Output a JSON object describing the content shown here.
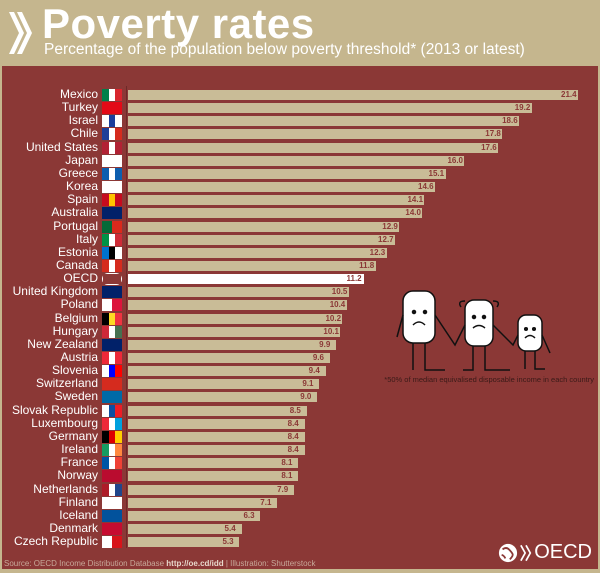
{
  "header": {
    "title": "Poverty rates",
    "subtitle": "Percentage of the population below poverty threshold* (2013 or latest)"
  },
  "footnote": "50% of median equivalised disposable income in each country",
  "footnote_mark": "*",
  "source": {
    "text": "Source: OECD Income Distribution Database ",
    "link": "http://oe.cd/idd",
    "suffix": " | Illustration: Shutterstock"
  },
  "logo": {
    "text": "OECD"
  },
  "colors": {
    "background": "#c5b68e",
    "panel": "#8b3836",
    "bar": "#c9bc97",
    "highlight": "#ffffff"
  },
  "chart_data": {
    "type": "bar",
    "orientation": "horizontal",
    "title": "Poverty rates",
    "xlabel": "",
    "ylabel": "",
    "xlim": [
      0,
      21.4
    ],
    "categories": [
      "Mexico",
      "Turkey",
      "Israel",
      "Chile",
      "United States",
      "Japan",
      "Greece",
      "Korea",
      "Spain",
      "Australia",
      "Portugal",
      "Italy",
      "Estonia",
      "Canada",
      "OECD",
      "United Kingdom",
      "Poland",
      "Belgium",
      "Hungary",
      "New Zealand",
      "Austria",
      "Slovenia",
      "Switzerland",
      "Sweden",
      "Slovak Republic",
      "Luxembourg",
      "Germany",
      "Ireland",
      "France",
      "Norway",
      "Netherlands",
      "Finland",
      "Iceland",
      "Denmark",
      "Czech Republic"
    ],
    "values": [
      21.4,
      19.2,
      18.6,
      17.8,
      17.6,
      16.0,
      15.1,
      14.6,
      14.1,
      14.0,
      12.9,
      12.7,
      12.3,
      11.8,
      11.2,
      10.5,
      10.4,
      10.2,
      10.1,
      9.9,
      9.6,
      9.4,
      9.1,
      9.0,
      8.5,
      8.4,
      8.4,
      8.4,
      8.1,
      8.1,
      7.9,
      7.1,
      6.3,
      5.4,
      5.3
    ],
    "value_labels": [
      "21.4",
      "19.2",
      "18.6",
      "17.8",
      "17.6",
      "16.0",
      "15.1",
      "14.6",
      "14.1",
      "14.0",
      "12.9",
      "12.7",
      "12.3",
      "11.8",
      "11.2",
      "10.5",
      "10.4",
      "10.2",
      "10.1",
      "9.9",
      "9.6",
      "9.4",
      "9.1",
      "9.0",
      "8.5",
      "8.4",
      "8.4",
      "8.4",
      "8.1",
      "8.1",
      "7.9",
      "7.1",
      "6.3",
      "5.4",
      "5.3"
    ],
    "highlight": "OECD"
  },
  "flags": [
    [
      "#00804a",
      "#fff",
      "#d8262e"
    ],
    [
      "#e30a17"
    ],
    [
      "#fff",
      "#1a3e9c",
      "#fff"
    ],
    [
      "#1e3f99",
      "#fff",
      "#d52b1e"
    ],
    [
      "#b22234",
      "#fff",
      "#b22234"
    ],
    [
      "#fff"
    ],
    [
      "#0d5eaf",
      "#fff",
      "#0d5eaf"
    ],
    [
      "#fff"
    ],
    [
      "#c60b1e",
      "#ffc400",
      "#c60b1e"
    ],
    [
      "#012169"
    ],
    [
      "#046a38",
      "#da291c"
    ],
    [
      "#009246",
      "#fff",
      "#ce2b37"
    ],
    [
      "#0072ce",
      "#000",
      "#fff"
    ],
    [
      "#d52b1e",
      "#fff",
      "#d52b1e"
    ],
    [
      "#8b3836"
    ],
    [
      "#012169"
    ],
    [
      "#fff",
      "#dc143c"
    ],
    [
      "#000",
      "#fdda24",
      "#ef3340"
    ],
    [
      "#ce2939",
      "#fff",
      "#477050"
    ],
    [
      "#012169"
    ],
    [
      "#ed2939",
      "#fff",
      "#ed2939"
    ],
    [
      "#fff",
      "#0000ff",
      "#ff0000"
    ],
    [
      "#d52b1e"
    ],
    [
      "#006aa7"
    ],
    [
      "#fff",
      "#0b4ea2",
      "#ee1c25"
    ],
    [
      "#ed2939",
      "#fff",
      "#00a1de"
    ],
    [
      "#000",
      "#dd0000",
      "#ffce00"
    ],
    [
      "#169b62",
      "#fff",
      "#ff883e"
    ],
    [
      "#0055a4",
      "#fff",
      "#ef4135"
    ],
    [
      "#ba0c2f"
    ],
    [
      "#ae1c28",
      "#fff",
      "#21468b"
    ],
    [
      "#fff"
    ],
    [
      "#02529c"
    ],
    [
      "#c60c30"
    ],
    [
      "#fff",
      "#d7141a"
    ]
  ]
}
